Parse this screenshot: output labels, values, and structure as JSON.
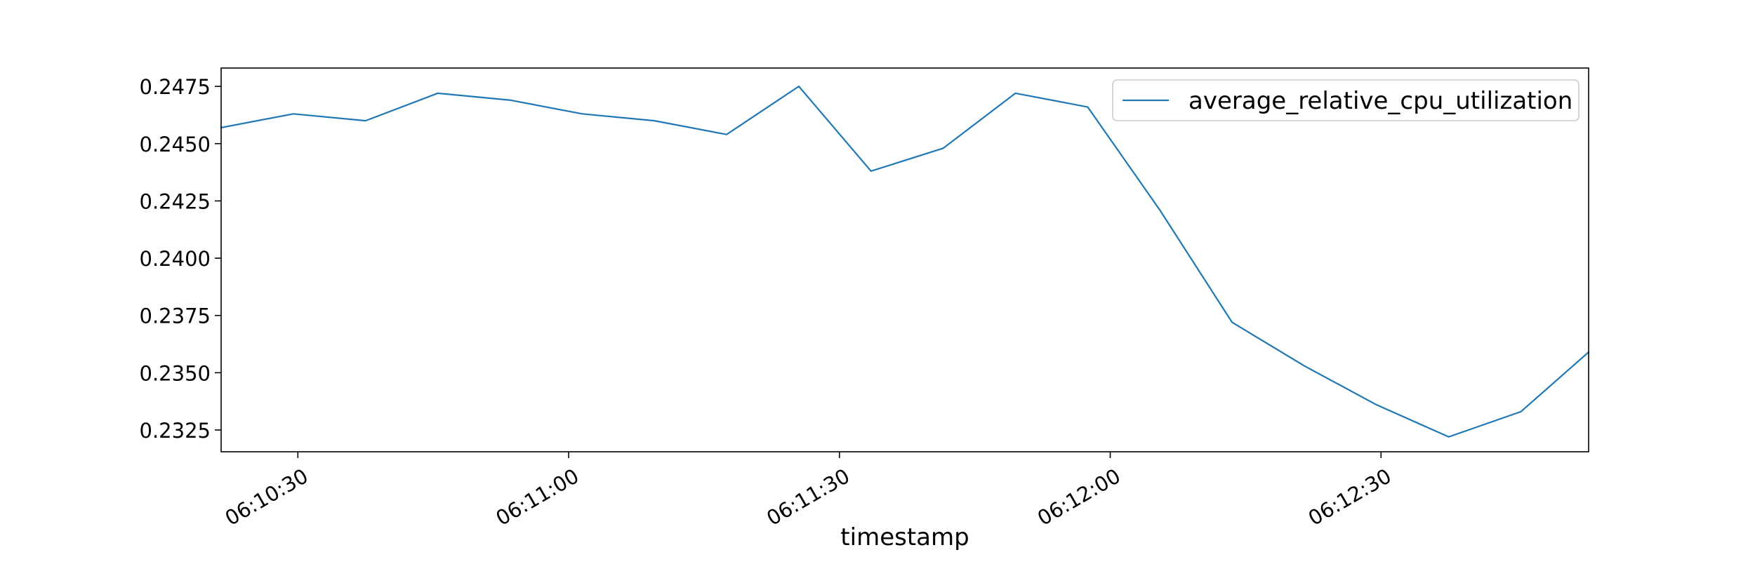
{
  "chart_data": {
    "type": "line",
    "title": "",
    "xlabel": "timestamp",
    "ylabel": "",
    "grid": false,
    "legend_position": "top-right",
    "x_tick_labels": [
      "06:10:30",
      "06:11:00",
      "06:11:30",
      "06:12:00",
      "06:12:30"
    ],
    "x_tick_values": [
      "06:10:30",
      "06:11:00",
      "06:11:30",
      "06:12:00",
      "06:12:30"
    ],
    "y_tick_labels": [
      "0.2325",
      "0.2350",
      "0.2375",
      "0.2400",
      "0.2425",
      "0.2450",
      "0.2475"
    ],
    "y_tick_values": [
      0.2325,
      0.235,
      0.2375,
      0.24,
      0.2425,
      0.245,
      0.2475
    ],
    "xlim": [
      "06:10:21.5",
      "06:12:53"
    ],
    "ylim": [
      0.23155,
      0.2483
    ],
    "x": [
      "06:10:21.5",
      "06:10:29.5",
      "06:10:37.5",
      "06:10:45.5",
      "06:10:53.5",
      "06:11:01.5",
      "06:11:09.5",
      "06:11:17.5",
      "06:11:25.5",
      "06:11:33.5",
      "06:11:41.5",
      "06:11:49.5",
      "06:11:57.5",
      "06:12:05.5",
      "06:12:13.5",
      "06:12:21.5",
      "06:12:29.5",
      "06:12:37.5",
      "06:12:45.5",
      "06:12:53"
    ],
    "series": [
      {
        "name": "average_relative_cpu_utilization",
        "color": "#1f77b4",
        "values": [
          0.2457,
          0.2463,
          0.246,
          0.2472,
          0.2469,
          0.2463,
          0.246,
          0.2454,
          0.2475,
          0.2438,
          0.2448,
          0.2472,
          0.2466,
          0.2421,
          0.2372,
          0.2353,
          0.2336,
          0.2322,
          0.2333,
          0.2359
        ]
      }
    ]
  }
}
